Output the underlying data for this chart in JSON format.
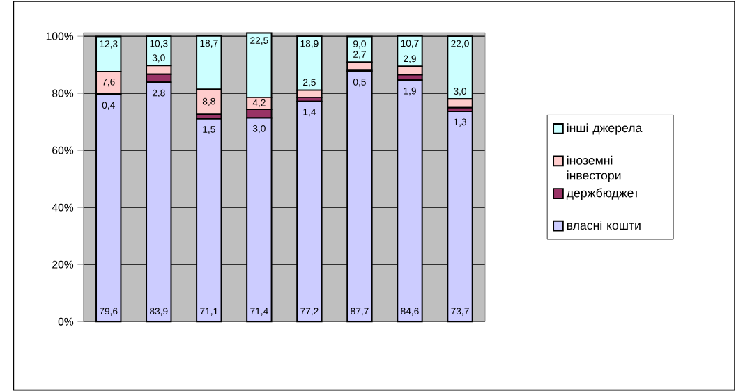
{
  "chart_data": {
    "type": "bar",
    "stacked": true,
    "categories": [
      null,
      null,
      null,
      null,
      null,
      null,
      null,
      null
    ],
    "series": [
      {
        "name": "власні кошти",
        "color": "#ccccff",
        "values": [
          79.6,
          83.9,
          71.1,
          71.4,
          77.2,
          87.7,
          84.6,
          73.7
        ],
        "value_labels": [
          "79,6",
          "83,9",
          "71,1",
          "71,4",
          "77,2",
          "87,7",
          "84,6",
          "73,7"
        ]
      },
      {
        "name": "держбюджет",
        "color": "#993366",
        "values": [
          0.4,
          2.8,
          1.5,
          3.0,
          1.4,
          0.5,
          1.9,
          1.3
        ],
        "value_labels": [
          "0,4",
          "2,8",
          "1,5",
          "3,0",
          "1,4",
          "0,5",
          "1,9",
          "1,3"
        ]
      },
      {
        "name": "іноземні інвестори",
        "color": "#ffcccc",
        "values": [
          7.6,
          3.0,
          8.8,
          4.2,
          2.5,
          2.7,
          2.9,
          3.0
        ],
        "value_labels": [
          "7,6",
          "3,0",
          "8,8",
          "4,2",
          "2,5",
          "2,7",
          "2,9",
          "3,0"
        ]
      },
      {
        "name": "інші джерела",
        "color": "#ccffff",
        "values": [
          12.3,
          10.3,
          18.7,
          22.5,
          18.9,
          9.0,
          10.7,
          22.0
        ],
        "value_labels": [
          "12,3",
          "10,3",
          "18,7",
          "22,5",
          "18,9",
          "9,0",
          "10,7",
          "22,0"
        ]
      }
    ],
    "ylim": [
      0,
      101.2
    ],
    "yticks": [
      {
        "value": 0,
        "label": "0%"
      },
      {
        "value": 20,
        "label": "20%"
      },
      {
        "value": 40,
        "label": "40%"
      },
      {
        "value": 60,
        "label": "60%"
      },
      {
        "value": 80,
        "label": "80%"
      },
      {
        "value": 100,
        "label": "100%"
      }
    ],
    "grid": "y",
    "legend": "right"
  }
}
